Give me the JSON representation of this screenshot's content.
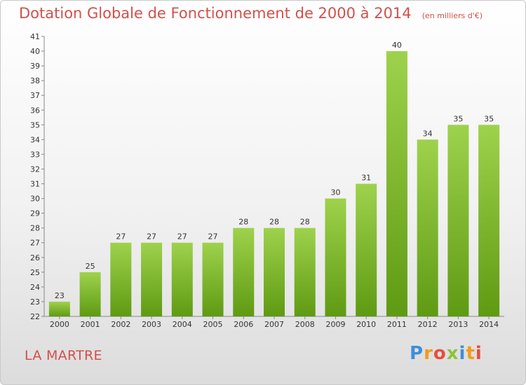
{
  "header": {
    "title": "Dotation Globale de Fonctionnement de 2000 à 2014",
    "unit_note": "(en milliers d'€)"
  },
  "footer": {
    "place": "LA MARTRE",
    "logo_letters": [
      "P",
      "r",
      "o",
      "x",
      "i",
      "t",
      "i"
    ],
    "logo_colors": [
      "#3f8fd8",
      "#f29b1e",
      "#e64e3c",
      "#8cc43c",
      "#3f8fd8",
      "#f29b1e",
      "#e64e3c"
    ]
  },
  "colors": {
    "bar_top": "#9ed24c",
    "bar_bottom": "#5f9a13",
    "accent": "#d2504a"
  },
  "chart_data": {
    "type": "bar",
    "title": "Dotation Globale de Fonctionnement de 2000 à 2014",
    "subtitle": "(en milliers d'€)",
    "categories": [
      "2000",
      "2001",
      "2002",
      "2003",
      "2004",
      "2005",
      "2006",
      "2007",
      "2008",
      "2009",
      "2010",
      "2011",
      "2012",
      "2013",
      "2014"
    ],
    "values": [
      23,
      25,
      27,
      27,
      27,
      27,
      28,
      28,
      28,
      30,
      31,
      40,
      34,
      35,
      35
    ],
    "ylim": [
      22,
      41
    ],
    "yticks": [
      22,
      23,
      24,
      25,
      26,
      27,
      28,
      29,
      30,
      31,
      32,
      33,
      34,
      35,
      36,
      37,
      38,
      39,
      40,
      41
    ],
    "xlabel": "",
    "ylabel": "",
    "grid": false,
    "legend": "none"
  }
}
